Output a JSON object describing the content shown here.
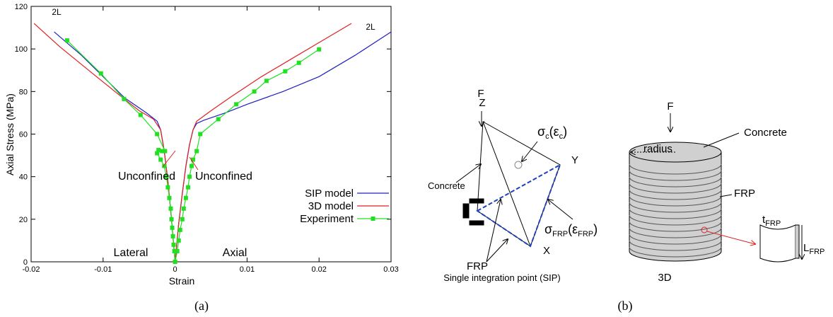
{
  "chart_data": {
    "type": "line",
    "caption": "(a)",
    "x_label": "Strain",
    "y_label": "Axial Stress (MPa)",
    "xlim": [
      -0.02,
      0.03
    ],
    "xticks": [
      -0.02,
      -0.01,
      0,
      0.01,
      0.02,
      0.03
    ],
    "ylim": [
      0,
      120
    ],
    "yticks": [
      0,
      20,
      40,
      60,
      80,
      100,
      120
    ],
    "grid": false,
    "legend": "lower right",
    "annotations": [
      "2L",
      "2L",
      "Unconfined",
      "Unconfined",
      "Lateral",
      "Axial"
    ],
    "series": [
      {
        "name": "SIP model",
        "color": "#2020c0",
        "x": [
          0,
          -0.0005,
          -0.001,
          -0.0015,
          -0.002,
          -0.0025,
          -0.004,
          -0.007,
          -0.01,
          -0.013,
          -0.0168,
          null,
          0,
          0.0005,
          0.001,
          0.0015,
          0.002,
          0.0025,
          0.003,
          0.004,
          0.007,
          0.01,
          0.015,
          0.02,
          0.025,
          0.03
        ],
        "values": [
          0,
          20,
          38,
          52,
          62,
          66,
          70,
          77,
          87,
          97,
          108,
          null,
          0,
          18,
          32,
          45,
          55,
          62,
          65,
          66.5,
          70,
          74,
          80,
          87,
          97,
          108
        ]
      },
      {
        "name": "3D model",
        "color": "#e02020",
        "x": [
          0,
          -0.0005,
          -0.001,
          -0.0015,
          -0.002,
          -0.003,
          -0.005,
          -0.008,
          -0.012,
          -0.016,
          -0.0196,
          null,
          0,
          0.0005,
          0.001,
          0.0015,
          0.002,
          0.0025,
          0.003,
          0.005,
          0.008,
          0.012,
          0.016,
          0.02,
          0.0245
        ],
        "values": [
          0,
          20,
          38,
          52,
          62,
          67,
          71,
          79,
          90,
          101,
          112,
          null,
          0,
          18,
          32,
          45,
          55,
          62,
          66,
          71,
          78,
          87,
          95,
          103,
          112
        ]
      },
      {
        "name": "Experiment",
        "color": "#20e020",
        "marker": "square",
        "x": [
          0,
          -0.0001,
          -0.0002,
          -0.0003,
          -0.0004,
          -0.0005,
          -0.0006,
          -0.0008,
          -0.001,
          -0.0012,
          -0.0015,
          -0.002,
          -0.0025,
          -0.0023,
          -0.0018,
          -0.0014,
          -0.0025,
          -0.0048,
          -0.0071,
          -0.0103,
          -0.015,
          null,
          0,
          0.0003,
          0.0005,
          0.0007,
          0.001,
          0.0012,
          0.0015,
          0.0018,
          0.002,
          0.0023,
          0.0025,
          0.003,
          0.0035,
          0.006,
          0.0085,
          0.011,
          0.0127,
          0.0153,
          0.0172,
          0.02
        ],
        "values": [
          0,
          5,
          8,
          12,
          16,
          20,
          25,
          30,
          35,
          40,
          45,
          48,
          51,
          52.5,
          52,
          52,
          60,
          69,
          76.5,
          88.5,
          104,
          null,
          0,
          5,
          10,
          15,
          20,
          25,
          30,
          35,
          40,
          45,
          48,
          52,
          60,
          67,
          74,
          80,
          85,
          89.5,
          93.5,
          99.8
        ]
      }
    ]
  },
  "diagram": {
    "caption": "(b)",
    "labels": [
      [
        "F"
      ],
      [
        "Z"
      ],
      [
        "σ",
        "c",
        "(ε",
        "c",
        ")"
      ],
      [
        "Y"
      ],
      [
        "Concrete"
      ],
      [
        "FRP"
      ],
      [
        "X"
      ],
      [
        "σ",
        "FRP",
        "(ε",
        "FRP",
        ")"
      ],
      [
        "Single integration point (SIP)"
      ],
      [
        "F"
      ],
      [
        "radius"
      ],
      [
        "Concrete"
      ],
      [
        "FRP"
      ],
      [
        "t",
        "FRP"
      ],
      [
        "L",
        "FRP"
      ],
      [
        "3D"
      ]
    ]
  }
}
